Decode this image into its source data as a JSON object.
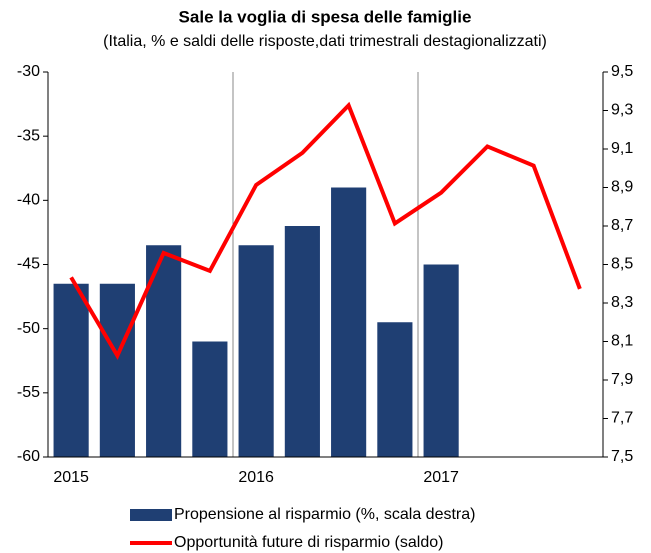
{
  "chart_data": {
    "type": "bar-line",
    "title": "Sale la voglia di spesa delle famiglie",
    "subtitle": "(Italia, % e saldi delle risposte,dati trimestrali destagionalizzati)",
    "categories": [
      "2015",
      null,
      null,
      null,
      "2016",
      null,
      null,
      null,
      "2017",
      null,
      null,
      null
    ],
    "ylim": [
      -60,
      -30
    ],
    "yticks": [
      -60,
      -55,
      -50,
      -45,
      -40,
      -35,
      -30
    ],
    "y2lim": [
      7.5,
      9.5
    ],
    "y2ticks": [
      {
        "value": 7.5,
        "label": "7,5"
      },
      {
        "value": 7.7,
        "label": "7,7"
      },
      {
        "value": 7.9,
        "label": "7,9"
      },
      {
        "value": 8.1,
        "label": "8,1"
      },
      {
        "value": 8.3,
        "label": "8,3"
      },
      {
        "value": 8.5,
        "label": "8,5"
      },
      {
        "value": 8.7,
        "label": "8,7"
      },
      {
        "value": 8.9,
        "label": "8,9"
      },
      {
        "value": 9.1,
        "label": "9,1"
      },
      {
        "value": 9.3,
        "label": "9,3"
      },
      {
        "value": 9.5,
        "label": "9,5"
      }
    ],
    "series": [
      {
        "name": "Propensione al risparmio (%, scala destra)",
        "type": "bar",
        "axis": "y2",
        "color": "#1f3f73",
        "values": [
          8.4,
          8.4,
          8.6,
          8.1,
          8.6,
          8.7,
          8.9,
          8.2,
          8.5,
          null,
          null,
          null
        ]
      },
      {
        "name": "Opportunità future di risparmio (saldo)",
        "type": "line",
        "axis": "y",
        "color": "#ff0000",
        "values": [
          -46.0,
          -52.1,
          -44.1,
          -45.5,
          -38.8,
          -36.3,
          -32.6,
          -41.8,
          -39.4,
          -35.8,
          -37.3,
          -46.9
        ]
      }
    ]
  }
}
